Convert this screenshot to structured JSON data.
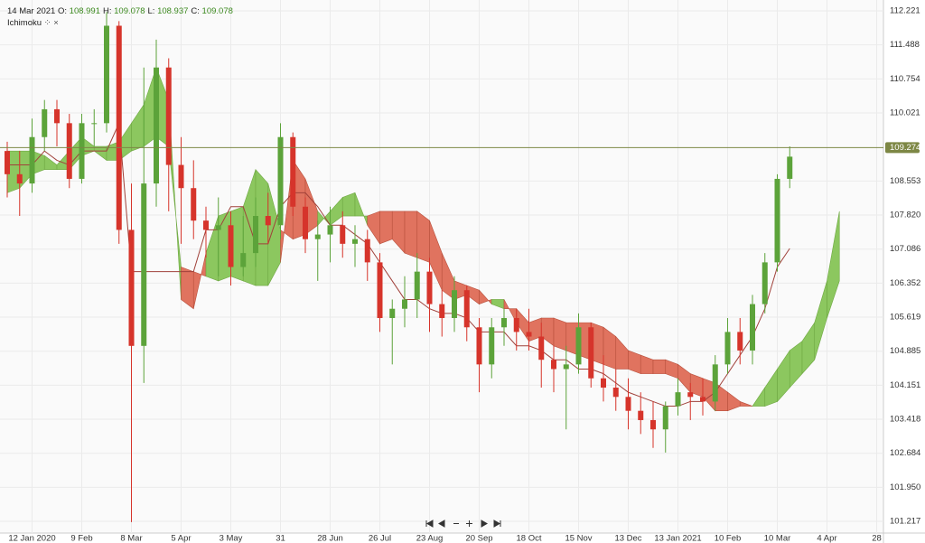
{
  "chart_data": {
    "type": "candlestick",
    "header": {
      "date": "14 Mar 2021",
      "items": [
        {
          "label": "O:",
          "value": 108.991
        },
        {
          "label": "H:",
          "value": 109.078
        },
        {
          "label": "L:",
          "value": 108.937
        },
        {
          "label": "C:",
          "value": 109.078
        }
      ]
    },
    "indicator": "Ichimoku",
    "categories": [
      null,
      null,
      "12 Jan 2020",
      null,
      null,
      null,
      "9 Feb",
      null,
      null,
      null,
      "8 Mar",
      null,
      null,
      null,
      "5 Apr",
      null,
      null,
      null,
      "3 May",
      null,
      null,
      null,
      "31",
      null,
      null,
      null,
      "28 Jun",
      null,
      null,
      null,
      "26 Jul",
      null,
      null,
      null,
      "23 Aug",
      null,
      null,
      null,
      "20 Sep",
      null,
      null,
      null,
      "18 Oct",
      null,
      null,
      null,
      "15 Nov",
      null,
      null,
      null,
      "13 Dec",
      null,
      null,
      null,
      "13 Jan 2021",
      null,
      null,
      null,
      "10 Feb",
      null,
      null,
      null,
      "10 Mar",
      null,
      null,
      null,
      "4 Apr",
      null,
      null,
      null,
      "28"
    ],
    "candles": [
      [
        109.2,
        109.4,
        108.2,
        108.7
      ],
      [
        108.7,
        109.2,
        107.8,
        108.5
      ],
      [
        108.5,
        109.9,
        108.3,
        109.5
      ],
      [
        109.5,
        110.3,
        109.2,
        110.1
      ],
      [
        110.1,
        110.3,
        109.3,
        109.8
      ],
      [
        109.8,
        110.0,
        108.4,
        108.6
      ],
      [
        108.6,
        110.0,
        108.5,
        109.8
      ],
      [
        109.8,
        110.1,
        109.3,
        109.8
      ],
      [
        109.8,
        112.2,
        109.6,
        111.9
      ],
      [
        111.9,
        112.0,
        107.2,
        107.5
      ],
      [
        107.5,
        108.5,
        101.2,
        105.0
      ],
      [
        105.0,
        111.0,
        104.2,
        108.5
      ],
      [
        108.5,
        111.6,
        108.0,
        111.0
      ],
      [
        111.0,
        111.2,
        107.9,
        108.9
      ],
      [
        108.9,
        109.5,
        107.2,
        108.4
      ],
      [
        108.4,
        109.0,
        107.3,
        107.7
      ],
      [
        107.7,
        108.0,
        106.9,
        107.5
      ],
      [
        107.5,
        108.2,
        106.5,
        107.6
      ],
      [
        107.6,
        107.9,
        106.3,
        106.7
      ],
      [
        106.7,
        107.8,
        106.5,
        107.0
      ],
      [
        107.0,
        108.2,
        106.7,
        107.8
      ],
      [
        107.8,
        108.3,
        107.2,
        107.6
      ],
      [
        107.6,
        109.8,
        107.3,
        109.5
      ],
      [
        109.5,
        109.6,
        107.8,
        108.0
      ],
      [
        108.0,
        108.2,
        107.0,
        107.3
      ],
      [
        107.3,
        107.7,
        106.4,
        107.4
      ],
      [
        107.4,
        108.0,
        106.8,
        107.6
      ],
      [
        107.6,
        107.9,
        106.9,
        107.2
      ],
      [
        107.2,
        107.6,
        106.7,
        107.3
      ],
      [
        107.3,
        107.5,
        106.4,
        106.8
      ],
      [
        106.8,
        107.0,
        105.3,
        105.6
      ],
      [
        105.6,
        106.0,
        104.6,
        105.8
      ],
      [
        105.8,
        106.5,
        105.4,
        106.0
      ],
      [
        106.0,
        107.0,
        105.6,
        106.6
      ],
      [
        106.6,
        106.9,
        105.3,
        105.9
      ],
      [
        105.9,
        106.2,
        105.2,
        105.6
      ],
      [
        105.6,
        106.5,
        105.3,
        106.2
      ],
      [
        106.2,
        106.3,
        105.1,
        105.4
      ],
      [
        105.4,
        105.6,
        104.0,
        104.6
      ],
      [
        104.6,
        105.6,
        104.3,
        105.4
      ],
      [
        105.4,
        105.8,
        105.0,
        105.6
      ],
      [
        105.6,
        105.8,
        104.9,
        105.3
      ],
      [
        105.3,
        105.8,
        104.9,
        105.2
      ],
      [
        105.2,
        105.5,
        104.1,
        104.7
      ],
      [
        104.7,
        105.0,
        104.0,
        104.5
      ],
      [
        104.5,
        105.0,
        103.2,
        104.6
      ],
      [
        104.6,
        105.7,
        104.4,
        105.4
      ],
      [
        105.4,
        105.5,
        104.1,
        104.3
      ],
      [
        104.3,
        104.8,
        103.8,
        104.1
      ],
      [
        104.1,
        104.5,
        103.6,
        103.9
      ],
      [
        103.9,
        104.3,
        103.2,
        103.6
      ],
      [
        103.6,
        104.0,
        103.1,
        103.4
      ],
      [
        103.4,
        103.8,
        102.8,
        103.2
      ],
      [
        103.2,
        103.8,
        102.7,
        103.7
      ],
      [
        103.7,
        104.3,
        103.5,
        104.0
      ],
      [
        104.0,
        104.2,
        103.4,
        103.9
      ],
      [
        103.9,
        104.3,
        103.5,
        103.8
      ],
      [
        103.8,
        104.8,
        103.6,
        104.6
      ],
      [
        104.6,
        105.6,
        104.4,
        105.3
      ],
      [
        105.3,
        105.6,
        104.6,
        104.9
      ],
      [
        104.9,
        106.1,
        104.6,
        105.9
      ],
      [
        105.9,
        107.0,
        105.7,
        106.8
      ],
      [
        106.8,
        108.7,
        106.6,
        108.6
      ],
      [
        108.6,
        109.3,
        108.4,
        109.078
      ],
      null,
      null,
      null,
      null,
      null,
      null,
      null
    ],
    "kijun": [
      108.9,
      108.9,
      108.9,
      109.2,
      109.0,
      108.9,
      109.2,
      109.2,
      109.2,
      109.8,
      106.6,
      106.6,
      106.6,
      106.6,
      106.6,
      106.6,
      107.5,
      107.5,
      108.0,
      108.0,
      107.2,
      107.2,
      108.0,
      108.3,
      108.3,
      108.0,
      107.6,
      107.6,
      107.4,
      107.2,
      106.8,
      106.4,
      106.0,
      106.0,
      105.8,
      105.7,
      105.7,
      105.6,
      105.3,
      105.3,
      105.3,
      105.0,
      105.0,
      104.9,
      104.7,
      104.7,
      104.5,
      104.5,
      104.4,
      104.2,
      104.0,
      103.9,
      103.8,
      103.7,
      103.7,
      103.8,
      103.8,
      104.0,
      104.4,
      104.8,
      105.2,
      105.8,
      106.7,
      107.1,
      null,
      null,
      null,
      null,
      null,
      null,
      null
    ],
    "span_a": [
      109.2,
      109.2,
      109.2,
      109.1,
      108.9,
      109.2,
      109.5,
      109.3,
      109.3,
      109.4,
      109.8,
      110.2,
      111.0,
      110.3,
      106.0,
      105.8,
      107.0,
      107.8,
      107.9,
      108.0,
      108.8,
      108.5,
      107.5,
      107.3,
      107.4,
      107.6,
      107.9,
      108.2,
      108.3,
      107.6,
      107.2,
      107.3,
      107.0,
      106.9,
      106.8,
      106.2,
      106.0,
      106.1,
      105.9,
      106.0,
      106.0,
      105.5,
      105.1,
      105.2,
      105.0,
      104.9,
      104.8,
      104.7,
      104.6,
      104.5,
      104.5,
      104.4,
      104.4,
      104.4,
      104.3,
      104.0,
      103.9,
      103.6,
      103.6,
      103.7,
      103.7,
      104.1,
      104.5,
      104.9,
      105.1,
      105.5,
      106.4,
      107.9,
      null,
      null,
      null
    ],
    "span_b": [
      108.3,
      108.4,
      108.7,
      108.8,
      108.8,
      108.8,
      109.1,
      109.2,
      109.0,
      109.0,
      109.2,
      109.3,
      109.5,
      109.3,
      106.7,
      106.6,
      106.5,
      106.4,
      106.5,
      106.4,
      106.3,
      106.3,
      106.8,
      109.0,
      108.6,
      107.9,
      107.6,
      107.8,
      107.8,
      107.8,
      107.9,
      107.9,
      107.9,
      107.9,
      107.7,
      107.0,
      106.4,
      106.3,
      106.2,
      105.9,
      105.8,
      105.8,
      105.5,
      105.6,
      105.6,
      105.5,
      105.5,
      105.5,
      105.4,
      105.2,
      104.9,
      104.8,
      104.7,
      104.7,
      104.6,
      104.4,
      104.3,
      104.2,
      104.0,
      103.8,
      103.7,
      103.7,
      103.8,
      104.1,
      104.4,
      104.7,
      105.6,
      106.4,
      null,
      null,
      null
    ],
    "last_price": 109.274,
    "ylim": [
      100.965,
      112.455
    ],
    "yticks": [
      112.221,
      111.488,
      110.754,
      110.021,
      108.553,
      {
        "value": 107.82,
        "label": "107.820"
      },
      107.086,
      106.352,
      105.619,
      104.885,
      104.151,
      103.418,
      102.684,
      {
        "value": 101.95,
        "label": "101.950"
      },
      101.217
    ],
    "grid": true,
    "colors": {
      "up": "#5ca33a",
      "down": "#d6342b",
      "cloud_up": "#8cc75f",
      "cloud_down": "#e0735f",
      "kijun": "#a0413a",
      "price_line": "#7d8745"
    }
  }
}
